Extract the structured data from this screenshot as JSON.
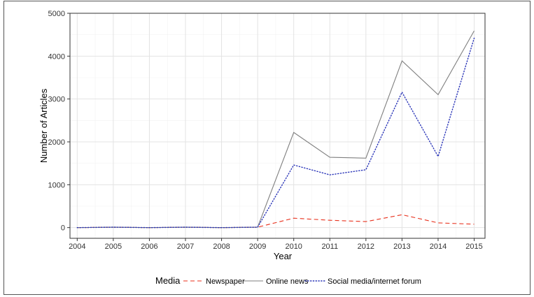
{
  "chart_data": {
    "type": "line",
    "xlabel": "Year",
    "ylabel": "Number of Articles",
    "x": [
      2004,
      2005,
      2006,
      2007,
      2008,
      2009,
      2010,
      2011,
      2012,
      2013,
      2014,
      2015
    ],
    "xlim": [
      2003.8,
      2015.3
    ],
    "ylim": [
      -250,
      5000
    ],
    "yticks": [
      0,
      1000,
      2000,
      3000,
      4000,
      5000
    ],
    "grid": true,
    "legend": {
      "title": "Media",
      "position": "bottom"
    },
    "series": [
      {
        "name": "Newspaper",
        "color": "#e8321e",
        "style": "dashed",
        "values": [
          0,
          10,
          0,
          10,
          0,
          10,
          220,
          170,
          140,
          300,
          110,
          80
        ]
      },
      {
        "name": "Online news",
        "color": "#7f7f7f",
        "style": "solid",
        "values": [
          0,
          10,
          0,
          10,
          0,
          10,
          2220,
          1640,
          1620,
          3890,
          3100,
          4590
        ]
      },
      {
        "name": "Social media/internet forum",
        "color": "#2a35b8",
        "style": "dotted",
        "values": [
          0,
          10,
          0,
          10,
          0,
          10,
          1460,
          1230,
          1350,
          3160,
          1660,
          4420
        ]
      }
    ]
  }
}
